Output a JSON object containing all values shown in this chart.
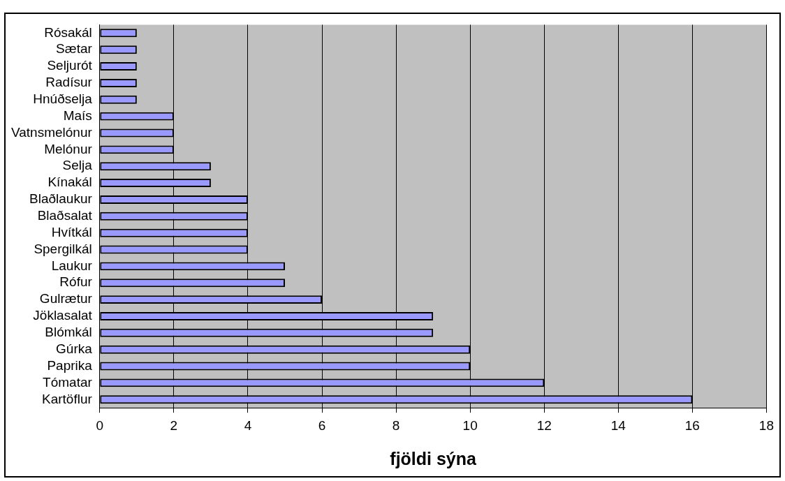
{
  "chart_data": {
    "type": "bar",
    "orientation": "horizontal",
    "xlabel": "fjöldi sýna",
    "categories": [
      "Rósakál",
      "Sætar",
      "Seljurót",
      "Radísur",
      "Hnúðselja",
      "Maís",
      "Vatnsmelónur",
      "Melónur",
      "Selja",
      "Kínakál",
      "Blaðlaukur",
      "Blaðsalat",
      "Hvítkál",
      "Spergilkál",
      "Laukur",
      "Rófur",
      "Gulrætur",
      "Jöklasalat",
      "Blómkál",
      "Gúrka",
      "Paprika",
      "Tómatar",
      "Kartöflur"
    ],
    "values": [
      1,
      1,
      1,
      1,
      1,
      2,
      2,
      2,
      3,
      3,
      4,
      4,
      4,
      4,
      5,
      5,
      6,
      9,
      9,
      10,
      10,
      12,
      16
    ],
    "color": "#9999ff",
    "xlim": [
      0,
      18
    ],
    "xticks": [
      0,
      2,
      4,
      6,
      8,
      10,
      12,
      14,
      16,
      18
    ],
    "grid": "x",
    "legend": false
  }
}
